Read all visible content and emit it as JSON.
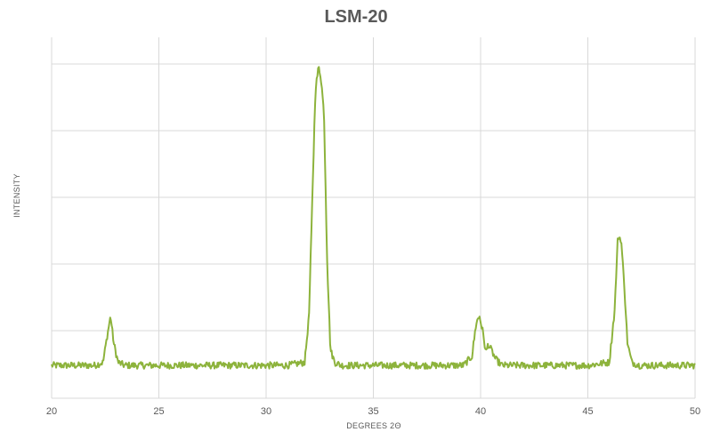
{
  "chart_data": {
    "type": "line",
    "title": "LSM-20",
    "xlabel": "DEGREES 2Θ",
    "ylabel": "INTENSITY",
    "xlim": [
      20,
      50
    ],
    "ylim": [
      0,
      100
    ],
    "x_ticks": [
      "20",
      "25",
      "30",
      "35",
      "40",
      "45",
      "50"
    ],
    "y_ticks_labeled": false,
    "grid": true,
    "legend": "none",
    "series": [
      {
        "color": "#8db33c",
        "x": [
          20,
          21,
          22,
          22.4,
          22.6,
          22.75,
          22.9,
          23.1,
          23.4,
          25,
          28,
          31,
          31.8,
          32.0,
          32.15,
          32.3,
          32.45,
          32.55,
          32.7,
          32.85,
          33.0,
          33.2,
          33.5,
          34,
          36,
          38,
          39.2,
          39.6,
          39.8,
          39.95,
          40.1,
          40.25,
          40.35,
          40.5,
          40.7,
          41.0,
          41.5,
          43,
          45,
          46.0,
          46.25,
          46.4,
          46.55,
          46.7,
          46.85,
          47.05,
          47.4,
          48.5,
          50
        ],
        "y": [
          2,
          2,
          2,
          3,
          12,
          18,
          9,
          3,
          2,
          2,
          2,
          2,
          3,
          18,
          55,
          92,
          99,
          96,
          84,
          35,
          7,
          3,
          2,
          2,
          2,
          2,
          2,
          5,
          16,
          18,
          13,
          6,
          9,
          7,
          4,
          2,
          2,
          2,
          2,
          3,
          20,
          44,
          43,
          28,
          9,
          3,
          2,
          2,
          2
        ]
      }
    ]
  }
}
